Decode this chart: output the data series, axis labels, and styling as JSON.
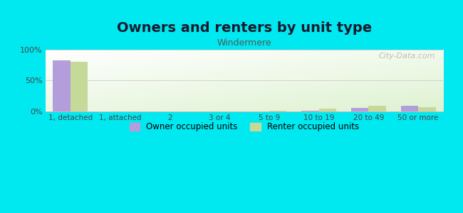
{
  "title": "Owners and renters by unit type",
  "subtitle": "Windermere",
  "categories": [
    "1, detached",
    "1, attached",
    "2",
    "3 or 4",
    "5 to 9",
    "10 to 19",
    "20 to 49",
    "50 or more"
  ],
  "owner_values": [
    83,
    0,
    0,
    0.3,
    0.3,
    1.5,
    6,
    9
  ],
  "renter_values": [
    80,
    0,
    0,
    0.5,
    0.8,
    4,
    9,
    7
  ],
  "owner_color": "#b39ddb",
  "renter_color": "#c5d998",
  "background_outer": "#00e8f0",
  "ylim": [
    0,
    100
  ],
  "yticks": [
    0,
    50,
    100
  ],
  "ytick_labels": [
    "0%",
    "50%",
    "100%"
  ],
  "watermark": "City-Data.com",
  "bar_width": 0.35,
  "title_fontsize": 14,
  "subtitle_fontsize": 9
}
